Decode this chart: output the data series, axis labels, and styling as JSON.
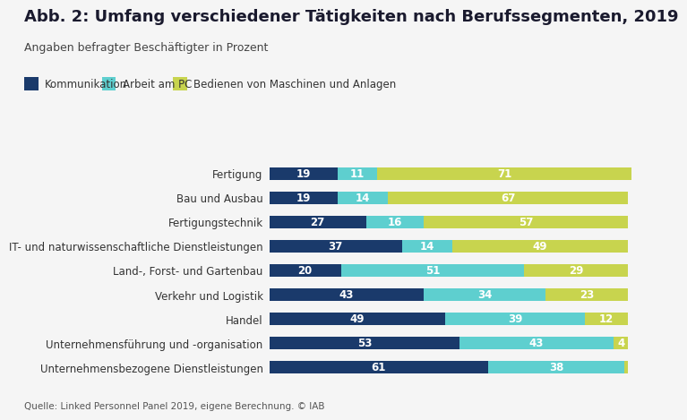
{
  "title": "Abb. 2: Umfang verschiedener Tätigkeiten nach Berufssegmenten, 2019",
  "subtitle": "Angaben befragter Beschäftigter in Prozent",
  "source": "Quelle: Linked Personnel Panel 2019, eigene Berechnung. © IAB",
  "categories": [
    "Fertigung",
    "Bau und Ausbau",
    "Fertigungstechnik",
    "IT- und naturwissenschaftliche Dienstleistungen",
    "Land-, Forst- und Gartenbau",
    "Verkehr und Logistik",
    "Handel",
    "Unternehmensführung und -organisation",
    "Unternehmensbezogene Dienstleistungen"
  ],
  "kommunikation": [
    19,
    19,
    27,
    37,
    20,
    43,
    49,
    53,
    61
  ],
  "arbeit_am_pc": [
    11,
    14,
    16,
    14,
    51,
    34,
    39,
    43,
    38
  ],
  "maschinen": [
    71,
    67,
    57,
    49,
    29,
    23,
    12,
    4,
    1
  ],
  "color_kommunikation": "#1a3a6b",
  "color_arbeit_am_pc": "#5ecfcf",
  "color_maschinen": "#c8d44e",
  "legend_labels": [
    "Kommunikation",
    "Arbeit am PC",
    "Bedienen von Maschinen und Anlagen"
  ],
  "background_color": "#f5f5f5",
  "bar_height": 0.52,
  "title_fontsize": 13,
  "subtitle_fontsize": 9,
  "label_fontsize": 8.5,
  "tick_fontsize": 8.5,
  "source_fontsize": 7.5
}
